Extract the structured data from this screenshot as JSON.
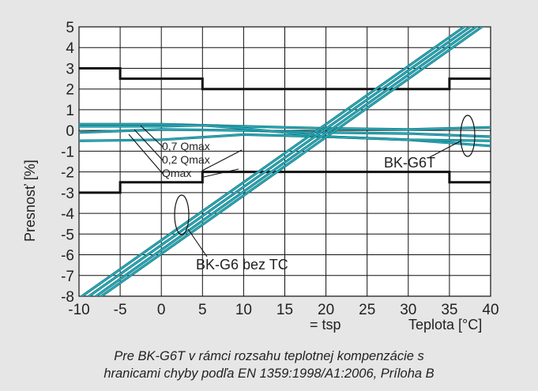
{
  "chart_data": {
    "type": "line",
    "xlim": [
      -10,
      40
    ],
    "ylim": [
      -8,
      5
    ],
    "xticks": [
      "-10",
      "-5",
      "0",
      "5",
      "10",
      "15",
      "20",
      "25",
      "30",
      "35",
      "40"
    ],
    "yticks": [
      "5",
      "4",
      "3",
      "2",
      "1",
      "0",
      "-1",
      "-2",
      "-3",
      "-4",
      "-5",
      "-6",
      "-7",
      "-8"
    ],
    "grid": true,
    "ylabel": "Presnosť [%]",
    "xlabel": "Teplota [°C]",
    "x_note": "= tsp",
    "colors": {
      "limits": "#111111",
      "curves": "#2aa8b5",
      "grid": "#111111",
      "background": "#e6e6e6",
      "plot_bg": "#ffffff"
    },
    "limits": [
      {
        "x": [
          -10,
          -5,
          -5,
          5,
          5,
          35,
          35,
          40
        ],
        "y": [
          3,
          3,
          2.5,
          2.5,
          2,
          2,
          2.5,
          2.5
        ]
      },
      {
        "x": [
          -10,
          -5,
          -5,
          5,
          5,
          35,
          35,
          40
        ],
        "y": [
          -3,
          -3,
          -2.5,
          -2.5,
          -2,
          -2,
          -2.5,
          -2.5
        ]
      }
    ],
    "series": [
      {
        "group": "BK-G6T",
        "x": [
          -10,
          0,
          10,
          15,
          20,
          30,
          40
        ],
        "y": [
          0.3,
          0.3,
          0.2,
          0.15,
          0.1,
          0.05,
          0.15
        ]
      },
      {
        "group": "BK-G6T",
        "x": [
          -10,
          0,
          10,
          15,
          20,
          30,
          40
        ],
        "y": [
          -0.1,
          0.05,
          0.0,
          -0.05,
          -0.1,
          -0.15,
          -0.3
        ]
      },
      {
        "group": "BK-G6T",
        "x": [
          -10,
          0,
          10,
          20,
          30,
          40
        ],
        "y": [
          -0.5,
          -0.45,
          -0.2,
          -0.3,
          -0.45,
          -0.75
        ]
      },
      {
        "group": "BK-G6T",
        "x": [
          -10,
          0,
          5,
          10,
          20,
          30,
          40
        ],
        "y": [
          0.2,
          0.2,
          0.25,
          0.1,
          -0.3,
          -0.45,
          -0.5
        ]
      },
      {
        "group": "BK-G6 bez TC",
        "x": [
          -10,
          40
        ],
        "y": [
          -8.1,
          5.9
        ]
      },
      {
        "group": "BK-G6 bez TC",
        "x": [
          -9.5,
          40
        ],
        "y": [
          -8.2,
          5.7
        ]
      },
      {
        "group": "BK-G6 bez TC",
        "x": [
          -9,
          40
        ],
        "y": [
          -8.3,
          5.5
        ]
      },
      {
        "group": "BK-G6 bez TC",
        "x": [
          -8.7,
          40
        ],
        "y": [
          -8.4,
          5.3
        ]
      }
    ],
    "annotations": [
      "0,7 Qmax",
      "0,2 Qmax",
      "Qmax",
      "BK-G6T",
      "BK-G6 bez TC"
    ]
  },
  "captions": {
    "line1": "Pre BK-G6T v rámci rozsahu teplotnej kompenzácie s",
    "line2": "hranicami chyby podľa EN 1359:1998/A1:2006, Príloha B"
  }
}
